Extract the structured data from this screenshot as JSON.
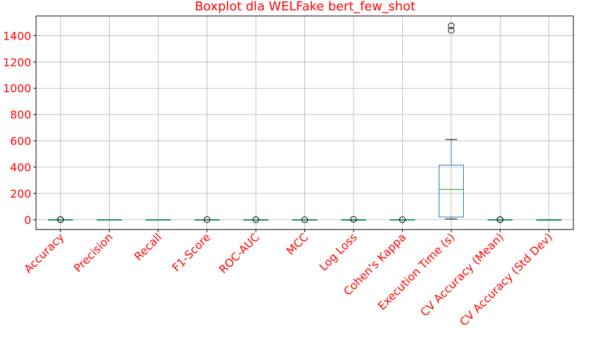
{
  "chart_data": {
    "type": "boxplot",
    "title": "Boxplot dla WELFake bert_few_shot",
    "xlabel": "",
    "ylabel": "",
    "ylim": [
      -75,
      1550
    ],
    "yticks": [
      0,
      200,
      400,
      600,
      800,
      1000,
      1200,
      1400
    ],
    "grid": true,
    "colors": {
      "text": "#ff0000",
      "box": "#1f77b4",
      "median": "#2ca02c",
      "whisker": "#000000",
      "flier": "#000000",
      "grid": "#b0b0b0"
    },
    "categories": [
      "Accuracy",
      "Precision",
      "Recall",
      "F1-Score",
      "ROC-AUC",
      "MCC",
      "Log Loss",
      "Cohen's Kappa",
      "Execution Time (s)",
      "CV Accuracy (Mean)",
      "CV Accuracy (Std Dev)"
    ],
    "boxes": [
      {
        "whislo": 0.9,
        "q1": 0.96,
        "med": 0.98,
        "q3": 0.99,
        "whishi": 1.0,
        "fliers": [
          0.3,
          0.5
        ]
      },
      {
        "whislo": 0.9,
        "q1": 0.95,
        "med": 0.97,
        "q3": 0.99,
        "whishi": 1.0,
        "fliers": []
      },
      {
        "whislo": 0.9,
        "q1": 0.95,
        "med": 0.98,
        "q3": 0.99,
        "whishi": 1.0,
        "fliers": []
      },
      {
        "whislo": 0.9,
        "q1": 0.96,
        "med": 0.98,
        "q3": 0.99,
        "whishi": 1.0,
        "fliers": [
          0.4
        ]
      },
      {
        "whislo": 0.95,
        "q1": 0.98,
        "med": 0.99,
        "q3": 1.0,
        "whishi": 1.0,
        "fliers": [
          0.5
        ]
      },
      {
        "whislo": 0.8,
        "q1": 0.92,
        "med": 0.96,
        "q3": 0.98,
        "whishi": 1.0,
        "fliers": [
          0.1
        ]
      },
      {
        "whislo": 0.05,
        "q1": 0.1,
        "med": 0.2,
        "q3": 0.4,
        "whishi": 0.8,
        "fliers": [
          2.5
        ]
      },
      {
        "whislo": 0.8,
        "q1": 0.92,
        "med": 0.96,
        "q3": 0.98,
        "whishi": 1.0,
        "fliers": [
          0.1
        ]
      },
      {
        "whislo": 5,
        "q1": 20,
        "med": 230,
        "q3": 415,
        "whishi": 610,
        "fliers": [
          1440,
          1475
        ]
      },
      {
        "whislo": 0.9,
        "q1": 0.95,
        "med": 0.97,
        "q3": 0.98,
        "whishi": 0.99,
        "fliers": [
          0.3,
          0.5
        ]
      },
      {
        "whislo": 0.005,
        "q1": 0.01,
        "med": 0.015,
        "q3": 0.02,
        "whishi": 0.03,
        "fliers": []
      }
    ]
  }
}
